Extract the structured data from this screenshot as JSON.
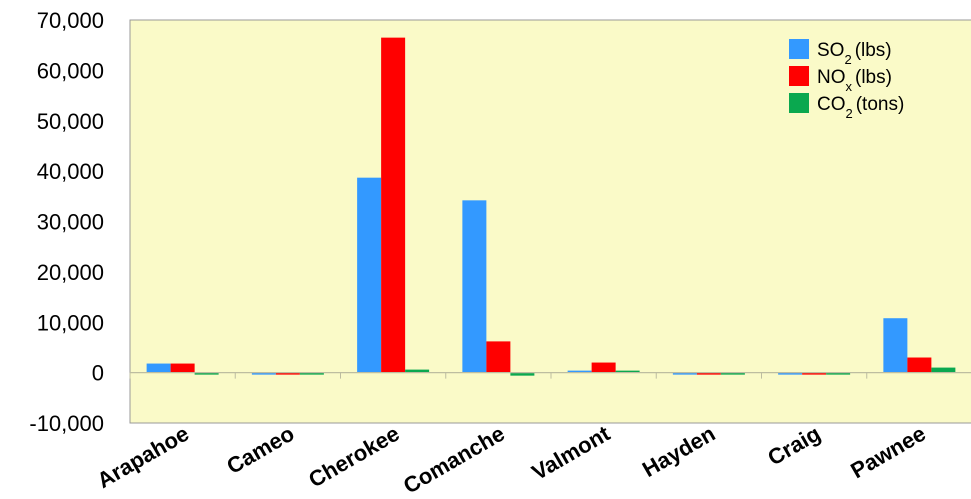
{
  "chart_data": {
    "type": "bar",
    "categories": [
      "Arapahoe",
      "Cameo",
      "Cherokee",
      "Comanche",
      "Valmont",
      "Hayden",
      "Craig",
      "Pawnee"
    ],
    "series": [
      {
        "name_parts": [
          "SO",
          "2",
          "(lbs)"
        ],
        "color": "#3399ff",
        "values": [
          1800,
          -300,
          38700,
          34200,
          300,
          -300,
          -300,
          10800
        ]
      },
      {
        "name_parts": [
          "NO",
          "x",
          "(lbs)"
        ],
        "color": "#ff0000",
        "values": [
          1800,
          -200,
          66500,
          6200,
          2000,
          -400,
          -200,
          3000
        ]
      },
      {
        "name_parts": [
          "CO",
          "2",
          "(tons)"
        ],
        "color": "#0aa84f",
        "values": [
          -300,
          -200,
          600,
          -600,
          200,
          -300,
          -200,
          1000
        ]
      }
    ],
    "yticks": [
      "70,000",
      "60,000",
      "50,000",
      "40,000",
      "30,000",
      "20,000",
      "10,000",
      "0",
      "-10,000"
    ],
    "ylim": [
      -10000,
      70000
    ],
    "plot_background": "#fafac8",
    "legend_position": "top-right",
    "grid": false
  }
}
